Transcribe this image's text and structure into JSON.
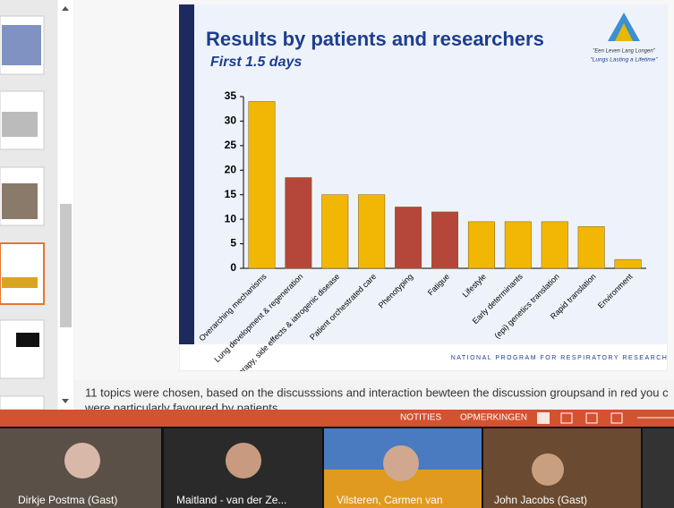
{
  "chart_data": {
    "type": "bar",
    "title": "Results by patients and researchers",
    "subtitle": "First 1.5 days",
    "categories": [
      "Overarching mechanisms",
      "Lung development & regeneration",
      "Personalized therapy, side effects & iatrogenic disease",
      "Patient orchestrated care",
      "Phenotyping",
      "Fatigue",
      "Lifestyle",
      "Early determinants",
      "(epi) genetics translation",
      "Rapid translation",
      "Environment"
    ],
    "values": [
      34,
      18.5,
      15,
      15,
      12.5,
      11.5,
      9.5,
      9.5,
      9.5,
      8.5,
      1.8
    ],
    "colors": [
      "#f2b705",
      "#b5473a",
      "#f2b705",
      "#f2b705",
      "#b5473a",
      "#b5473a",
      "#f2b705",
      "#f2b705",
      "#f2b705",
      "#f2b705",
      "#f2b705"
    ],
    "ylim": [
      0,
      35
    ],
    "yticks": [
      0,
      5,
      10,
      15,
      20,
      25,
      30,
      35
    ],
    "grid": false
  },
  "slide": {
    "logo_top": "\"Een Leven Lang Longen\"",
    "logo_bottom": "\"Lungs Lasting a Lifetime\"",
    "footer": "NATIONAL PROGRAM FOR RESPIRATORY RESEARCH"
  },
  "notes": {
    "line1": "11 topics were chosen, based on the discusssions and interaction bewteen the discussion groupsand in red you c",
    "line2": "were particularly favoured by patients"
  },
  "statusbar": {
    "notes": "NOTITIES",
    "comments": "OPMERKINGEN"
  },
  "participants": [
    "Dirkje Postma (Gast)",
    "Maitland - van der Ze...",
    "Vilsteren, Carmen van",
    "John Jacobs (Gast)"
  ]
}
